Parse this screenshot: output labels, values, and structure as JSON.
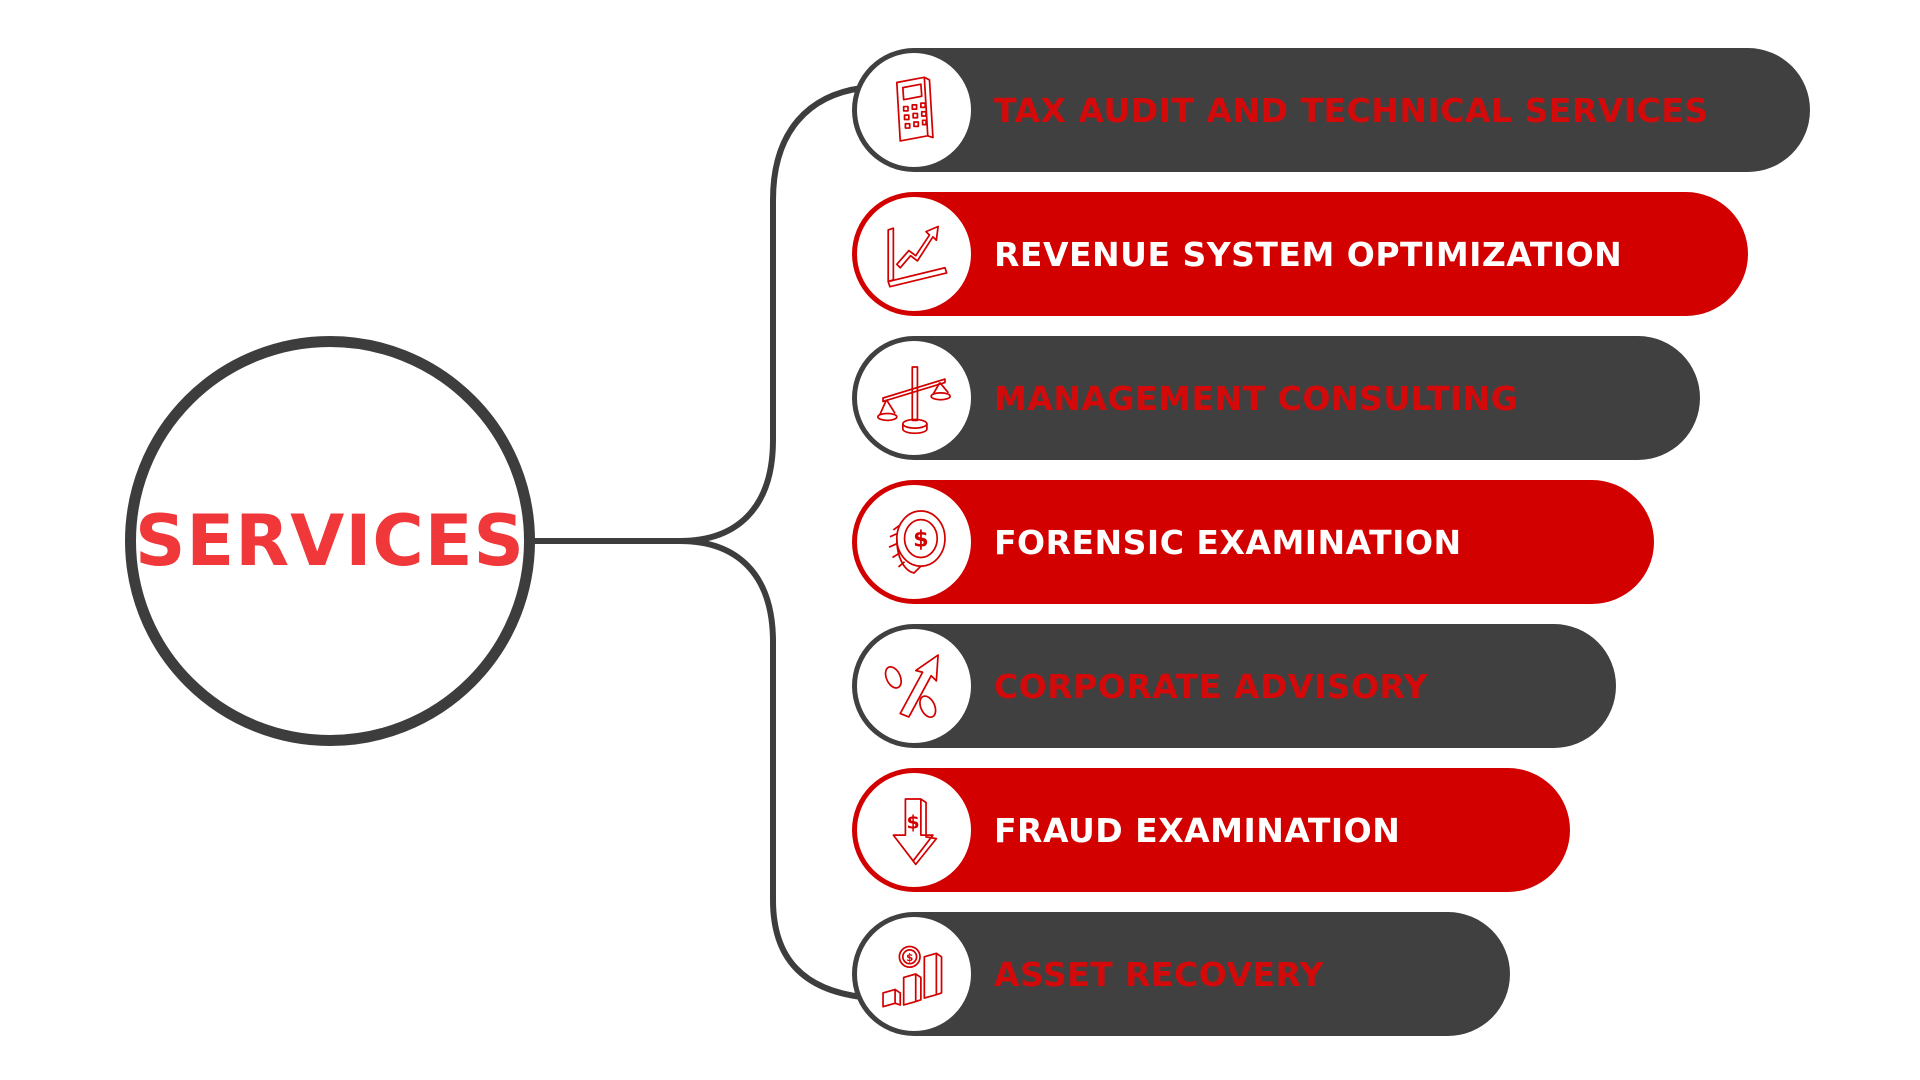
{
  "hub": {
    "label": "SERVICES"
  },
  "colors": {
    "dark": "#404040",
    "red": "#d30000",
    "hub_text": "#f0373a",
    "connector": "#3d3d3d"
  },
  "services": [
    {
      "label": "TAX AUDIT AND TECHNICAL SERVICES",
      "icon": "calculator-icon",
      "style": "dark"
    },
    {
      "label": "REVENUE SYSTEM OPTIMIZATION",
      "icon": "growth-chart-icon",
      "style": "red"
    },
    {
      "label": "MANAGEMENT CONSULTING",
      "icon": "balance-scale-icon",
      "style": "dark"
    },
    {
      "label": "FORENSIC EXAMINATION",
      "icon": "dollar-coin-icon",
      "style": "red"
    },
    {
      "label": "CORPORATE ADVISORY",
      "icon": "percent-arrow-icon",
      "style": "dark"
    },
    {
      "label": "FRAUD EXAMINATION",
      "icon": "dollar-down-arrow-icon",
      "style": "red"
    },
    {
      "label": "ASSET RECOVERY",
      "icon": "coin-bar-chart-icon",
      "style": "dark"
    }
  ]
}
